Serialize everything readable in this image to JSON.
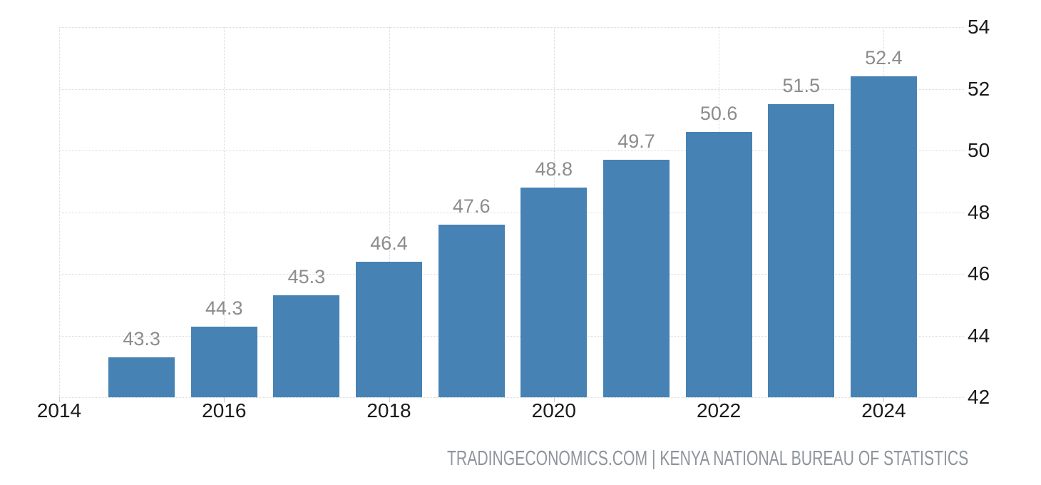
{
  "chart_data": {
    "type": "bar",
    "title": "",
    "xlabel": "",
    "ylabel": "",
    "categories": [
      2015,
      2016,
      2017,
      2018,
      2019,
      2020,
      2021,
      2022,
      2023,
      2024
    ],
    "values": [
      43.3,
      44.3,
      45.3,
      46.4,
      47.6,
      48.8,
      49.7,
      50.6,
      51.5,
      52.4
    ],
    "value_labels": [
      "43.3",
      "44.3",
      "45.3",
      "46.4",
      "47.6",
      "48.8",
      "49.7",
      "50.6",
      "51.5",
      "52.4"
    ],
    "x_axis_ticks": [
      "2014",
      "2016",
      "2018",
      "2020",
      "2022",
      "2024"
    ],
    "x_axis_tick_years": [
      2014,
      2016,
      2018,
      2020,
      2022,
      2024
    ],
    "y_axis_ticks": [
      "54",
      "52",
      "50",
      "48",
      "46",
      "44",
      "42"
    ],
    "y_axis_tick_values": [
      54,
      52,
      50,
      48,
      46,
      44,
      42
    ],
    "xlim": [
      2014,
      2025
    ],
    "ylim": [
      42,
      54
    ],
    "grid": "dotted",
    "legend": "none",
    "y_axis_position": "right",
    "bar_color": "#4682b4"
  },
  "colors": {
    "bar": "#4682b4",
    "grid": "#d9d9d9",
    "axis_label": "#1a1a1a",
    "value_label": "#8c8c8c",
    "footer": "#8e959c",
    "background": "#ffffff"
  },
  "footer": {
    "text": "TRADINGECONOMICS.COM | KENYA NATIONAL BUREAU OF STATISTICS"
  }
}
